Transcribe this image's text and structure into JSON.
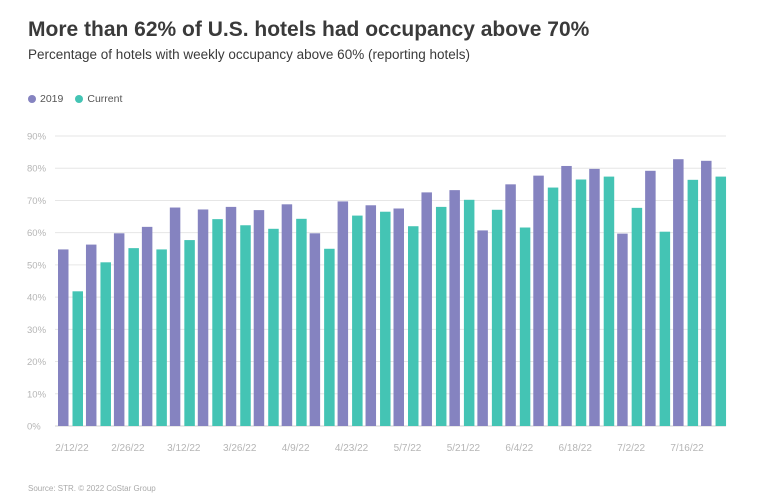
{
  "colors": {
    "series_2019": "#8583c0",
    "series_current": "#44c4b4",
    "grid": "#e6e6e6",
    "tick": "#b5b5b5"
  },
  "chart_data": {
    "type": "bar",
    "title": "More than 62% of U.S. hotels had occupancy above 70%",
    "subtitle": "Percentage of hotels with weekly occupancy above 60% (reporting hotels)",
    "xlabel": "",
    "ylabel": "",
    "ylim": [
      0,
      90
    ],
    "yticks": [
      "0%",
      "10%",
      "20%",
      "30%",
      "40%",
      "50%",
      "60%",
      "70%",
      "80%",
      "90%"
    ],
    "legend_position": "top-left",
    "categories": [
      "2/12/22",
      "2/19/22",
      "2/26/22",
      "3/5/22",
      "3/12/22",
      "3/19/22",
      "3/26/22",
      "4/2/22",
      "4/9/22",
      "4/16/22",
      "4/23/22",
      "4/30/22",
      "5/7/22",
      "5/14/22",
      "5/21/22",
      "5/28/22",
      "6/4/22",
      "6/11/22",
      "6/18/22",
      "6/25/22",
      "7/2/22",
      "7/9/22",
      "7/16/22",
      "7/23/22"
    ],
    "xtick_labels": [
      "2/12/22",
      "",
      "2/26/22",
      "",
      "3/12/22",
      "",
      "3/26/22",
      "",
      "4/9/22",
      "",
      "4/23/22",
      "",
      "5/7/22",
      "",
      "5/21/22",
      "",
      "6/4/22",
      "",
      "6/18/22",
      "",
      "7/2/22",
      "",
      "7/16/22",
      ""
    ],
    "series": [
      {
        "name": "2019",
        "values": [
          54.8,
          56.3,
          59.8,
          61.8,
          67.8,
          67.2,
          68.0,
          67.0,
          68.8,
          59.8,
          69.7,
          68.5,
          67.5,
          72.5,
          73.2,
          60.7,
          75.0,
          77.7,
          80.7,
          79.8,
          59.7,
          79.2,
          82.8,
          82.3
        ]
      },
      {
        "name": "Current",
        "values": [
          41.8,
          50.8,
          55.2,
          54.8,
          57.7,
          64.2,
          62.3,
          61.2,
          64.3,
          55.0,
          65.3,
          66.5,
          62.0,
          68.0,
          70.2,
          67.1,
          61.6,
          74.0,
          76.5,
          77.4,
          67.7,
          60.3,
          76.4,
          77.4
        ]
      }
    ]
  },
  "legend": {
    "items": [
      "2019",
      "Current"
    ]
  },
  "source": "Source: STR. © 2022 CoStar Group"
}
